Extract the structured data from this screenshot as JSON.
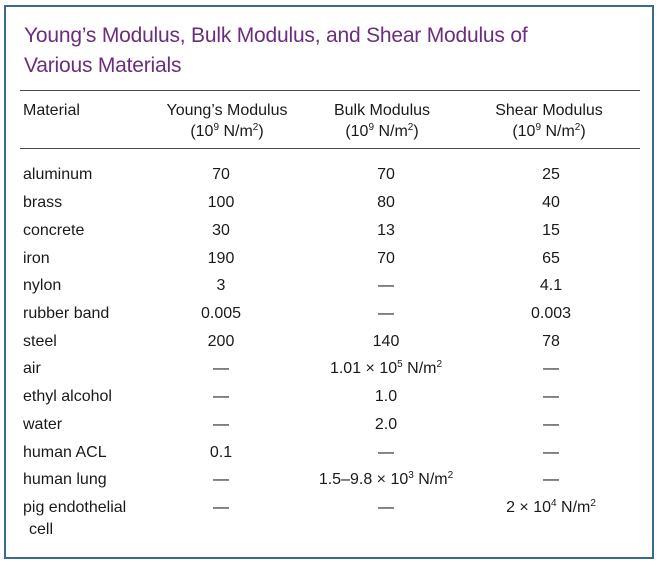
{
  "title": {
    "line1": "Young’s Modulus, Bulk Modulus, and Shear Modulus of",
    "line2": "Various Materials"
  },
  "headers": {
    "material": "Material",
    "young": "Young’s Modulus",
    "bulk": "Bulk Modulus",
    "shear": "Shear Modulus",
    "unit_prefix": "(10",
    "unit_exp": "9",
    "unit_mid": " N/m",
    "unit_exp2": "2",
    "unit_suffix": ")"
  },
  "rows": [
    {
      "material": "aluminum",
      "young": "70",
      "bulk": "70",
      "shear": "25"
    },
    {
      "material": "brass",
      "young": "100",
      "bulk": "80",
      "shear": "40"
    },
    {
      "material": "concrete",
      "young": "30",
      "bulk": "13",
      "shear": "15"
    },
    {
      "material": "iron",
      "young": "190",
      "bulk": "70",
      "shear": "65"
    },
    {
      "material": "nylon",
      "young": "3",
      "bulk": "—",
      "shear": "4.1"
    },
    {
      "material": "rubber band",
      "young": "0.005",
      "bulk": "—",
      "shear": "0.003"
    },
    {
      "material": "steel",
      "young": "200",
      "bulk": "140",
      "shear": "78"
    },
    {
      "material": "air",
      "young": "—",
      "bulk": {
        "base": "1.01 × 10",
        "exp": "5",
        "unit": " N/m",
        "exp2": "2"
      },
      "shear": "—"
    },
    {
      "material": "ethyl alcohol",
      "young": "—",
      "bulk": "1.0",
      "shear": "—"
    },
    {
      "material": "water",
      "young": "—",
      "bulk": "2.0",
      "shear": "—"
    },
    {
      "material": "human ACL",
      "young": "0.1",
      "bulk": "—",
      "shear": "—"
    },
    {
      "material": "human lung",
      "young": "—",
      "bulk": {
        "base": "1.5–9.8 × 10",
        "exp": "3",
        "unit": " N/m",
        "exp2": "2"
      },
      "shear": "—"
    },
    {
      "material": [
        "pig endothelial",
        "cell"
      ],
      "young": "—",
      "bulk": "—",
      "shear": {
        "base": "2 × 10",
        "exp": "4",
        "unit": " N/m",
        "exp2": "2"
      }
    }
  ]
}
